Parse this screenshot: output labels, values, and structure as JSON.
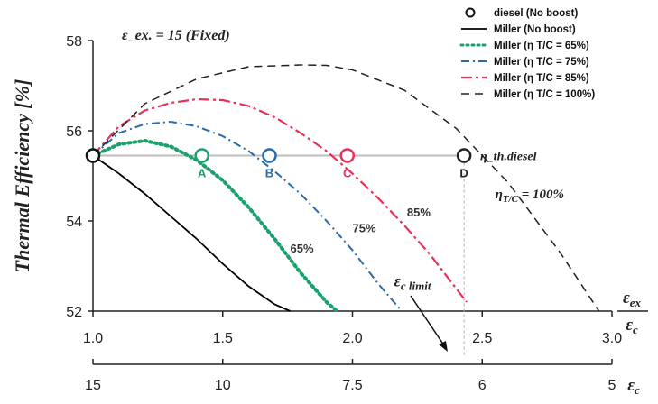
{
  "chart_data": {
    "type": "line",
    "title": "",
    "ylabel": "Thermal Efficiency [%]",
    "xlabel_top": "ε_ex / ε_c",
    "xlabel_bottom": "ε_c",
    "xlim": [
      1.0,
      3.0
    ],
    "ylim": [
      52,
      58
    ],
    "xticks": [
      "1.0",
      "1.5",
      "2.0",
      "2.5",
      "3.0"
    ],
    "xticks_bottom": [
      "15",
      "10",
      "7.5",
      "6",
      "5"
    ],
    "yticks": [
      "52",
      "54",
      "56",
      "58"
    ],
    "grid": false,
    "legend_position": "top-right",
    "fixed_note": "ε_ex. = 15 (Fixed)",
    "reference_line": {
      "label": "η_th.diesel",
      "y": 55.45
    },
    "series": [
      {
        "name": "diesel (No boost)",
        "type": "marker",
        "color": "#111111",
        "x": [
          1.0
        ],
        "y": [
          55.45
        ]
      },
      {
        "name": "Miller (No boost)",
        "color": "#000000",
        "x": [
          1.0,
          1.1,
          1.2,
          1.3,
          1.4,
          1.5,
          1.6,
          1.7,
          1.76
        ],
        "y": [
          55.45,
          55.05,
          54.6,
          54.1,
          53.6,
          53.05,
          52.55,
          52.15,
          52.0
        ]
      },
      {
        "name": "Miller (η T/C = 65%)",
        "color": "#1aa06a",
        "x": [
          1.0,
          1.1,
          1.2,
          1.3,
          1.4,
          1.5,
          1.6,
          1.7,
          1.8,
          1.9,
          1.94
        ],
        "y": [
          55.45,
          55.7,
          55.78,
          55.65,
          55.35,
          54.9,
          54.3,
          53.6,
          52.85,
          52.2,
          52.0
        ]
      },
      {
        "name": "Miller (η T/C = 75%)",
        "color": "#2a6aa8",
        "x": [
          1.0,
          1.1,
          1.2,
          1.3,
          1.4,
          1.5,
          1.6,
          1.7,
          1.8,
          1.9,
          2.0,
          2.1,
          2.19
        ],
        "y": [
          55.45,
          55.95,
          56.15,
          56.2,
          56.1,
          55.88,
          55.55,
          55.1,
          54.6,
          54.0,
          53.35,
          52.6,
          52.0
        ]
      },
      {
        "name": "Miller (η T/C = 85%)",
        "color": "#e8305a",
        "x": [
          1.0,
          1.1,
          1.2,
          1.3,
          1.4,
          1.5,
          1.6,
          1.7,
          1.8,
          1.9,
          2.0,
          2.1,
          2.2,
          2.3,
          2.4,
          2.44
        ],
        "y": [
          55.45,
          56.1,
          56.45,
          56.62,
          56.7,
          56.68,
          56.55,
          56.3,
          55.95,
          55.55,
          55.05,
          54.5,
          53.9,
          53.25,
          52.5,
          52.2
        ]
      },
      {
        "name": "Miller (η T/C = 100%)",
        "color": "#222222",
        "x": [
          1.0,
          1.2,
          1.4,
          1.6,
          1.8,
          1.9,
          2.0,
          2.2,
          2.4,
          2.6,
          2.8,
          2.95
        ],
        "y": [
          55.45,
          56.6,
          57.15,
          57.42,
          57.46,
          57.45,
          57.35,
          56.9,
          56.05,
          54.85,
          53.3,
          52.0
        ]
      }
    ],
    "points": [
      {
        "label": "A",
        "x": 1.42,
        "y": 55.45,
        "color": "#1aa06a"
      },
      {
        "label": "B",
        "x": 1.68,
        "y": 55.45,
        "color": "#2a6aa8"
      },
      {
        "label": "C",
        "x": 1.98,
        "y": 55.45,
        "color": "#e8305a"
      },
      {
        "label": "D",
        "x": 2.43,
        "y": 55.45,
        "color": "#222222"
      }
    ],
    "annotations": [
      {
        "text": "65%",
        "x": 1.76,
        "y": 53.3
      },
      {
        "text": "75%",
        "x": 2.0,
        "y": 53.75
      },
      {
        "text": "85%",
        "x": 2.21,
        "y": 54.1
      },
      {
        "text": "η_T/C = 100%",
        "x": 2.55,
        "y": 54.5
      },
      {
        "text": "ε_c limit",
        "x": 2.16,
        "y": 52.55
      }
    ]
  }
}
